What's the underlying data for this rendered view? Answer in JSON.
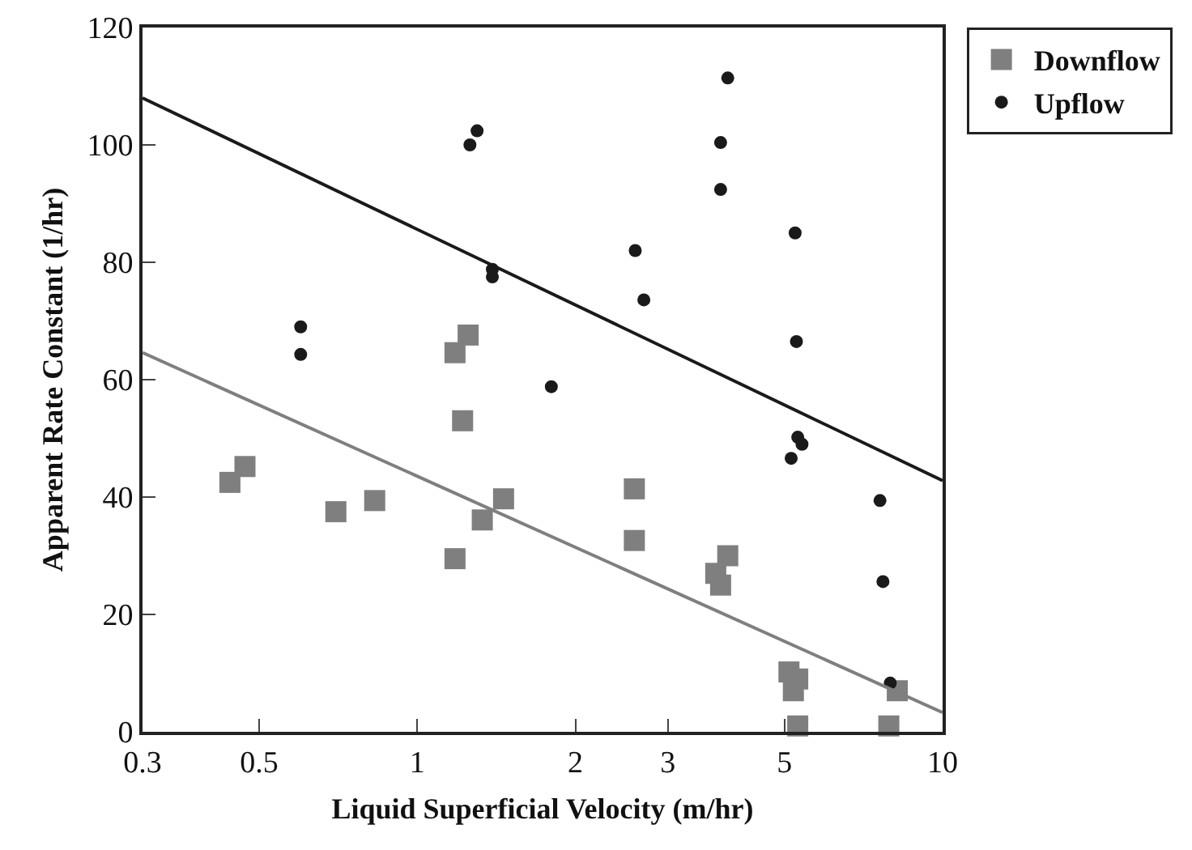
{
  "chart_data": {
    "type": "scatter",
    "xlabel": "Liquid Superficial Velocity (m/hr)",
    "ylabel": "Apparent Rate Constant (1/hr)",
    "log": "x",
    "xlim": [
      0.3,
      10
    ],
    "xticks": [
      0.3,
      0.5,
      1,
      2,
      3,
      5,
      10
    ],
    "ylim": [
      0,
      120
    ],
    "yticks": [
      0,
      20,
      40,
      60,
      80,
      100,
      120
    ],
    "grid": false,
    "legend": "top right",
    "series": [
      {
        "name": "Downflow",
        "color": "#7f7f7f",
        "marker": "square",
        "x": [
          0.44,
          0.47,
          0.7,
          0.83,
          1.18,
          1.18,
          1.25,
          1.22,
          1.33,
          1.46,
          2.59,
          2.59,
          3.7,
          3.78,
          3.9,
          5.1,
          5.3,
          5.2,
          5.3,
          7.9,
          8.2
        ],
        "values": [
          42.5,
          45.2,
          37.5,
          39.4,
          29.5,
          64.6,
          67.6,
          53,
          36.1,
          39.7,
          41.4,
          32.6,
          27,
          25,
          30,
          10.2,
          9,
          7,
          1,
          1,
          7
        ]
      },
      {
        "name": "Upflow",
        "color": "#1a1a1a",
        "marker": "circle",
        "x": [
          0.6,
          0.6,
          1.26,
          1.3,
          1.39,
          1.39,
          1.8,
          2.6,
          2.7,
          3.78,
          3.78,
          3.9,
          5.24,
          5.27,
          5.3,
          5.4,
          5.15,
          7.6,
          7.7,
          7.95
        ],
        "values": [
          69,
          64.3,
          100,
          102.4,
          78.8,
          77.5,
          58.8,
          82,
          73.6,
          100.4,
          92.4,
          111.4,
          85,
          66.5,
          50.2,
          49,
          46.6,
          39.4,
          25.6,
          8.3
        ]
      },
      {
        "type": "line",
        "color": "#7f7f7f",
        "marker": "none",
        "x": [
          0.3,
          10
        ],
        "values": [
          64.6,
          3.3
        ]
      },
      {
        "type": "line",
        "color": "#1a1a1a",
        "marker": "none",
        "x": [
          0.3,
          10
        ],
        "values": [
          108,
          42.8
        ]
      }
    ]
  }
}
